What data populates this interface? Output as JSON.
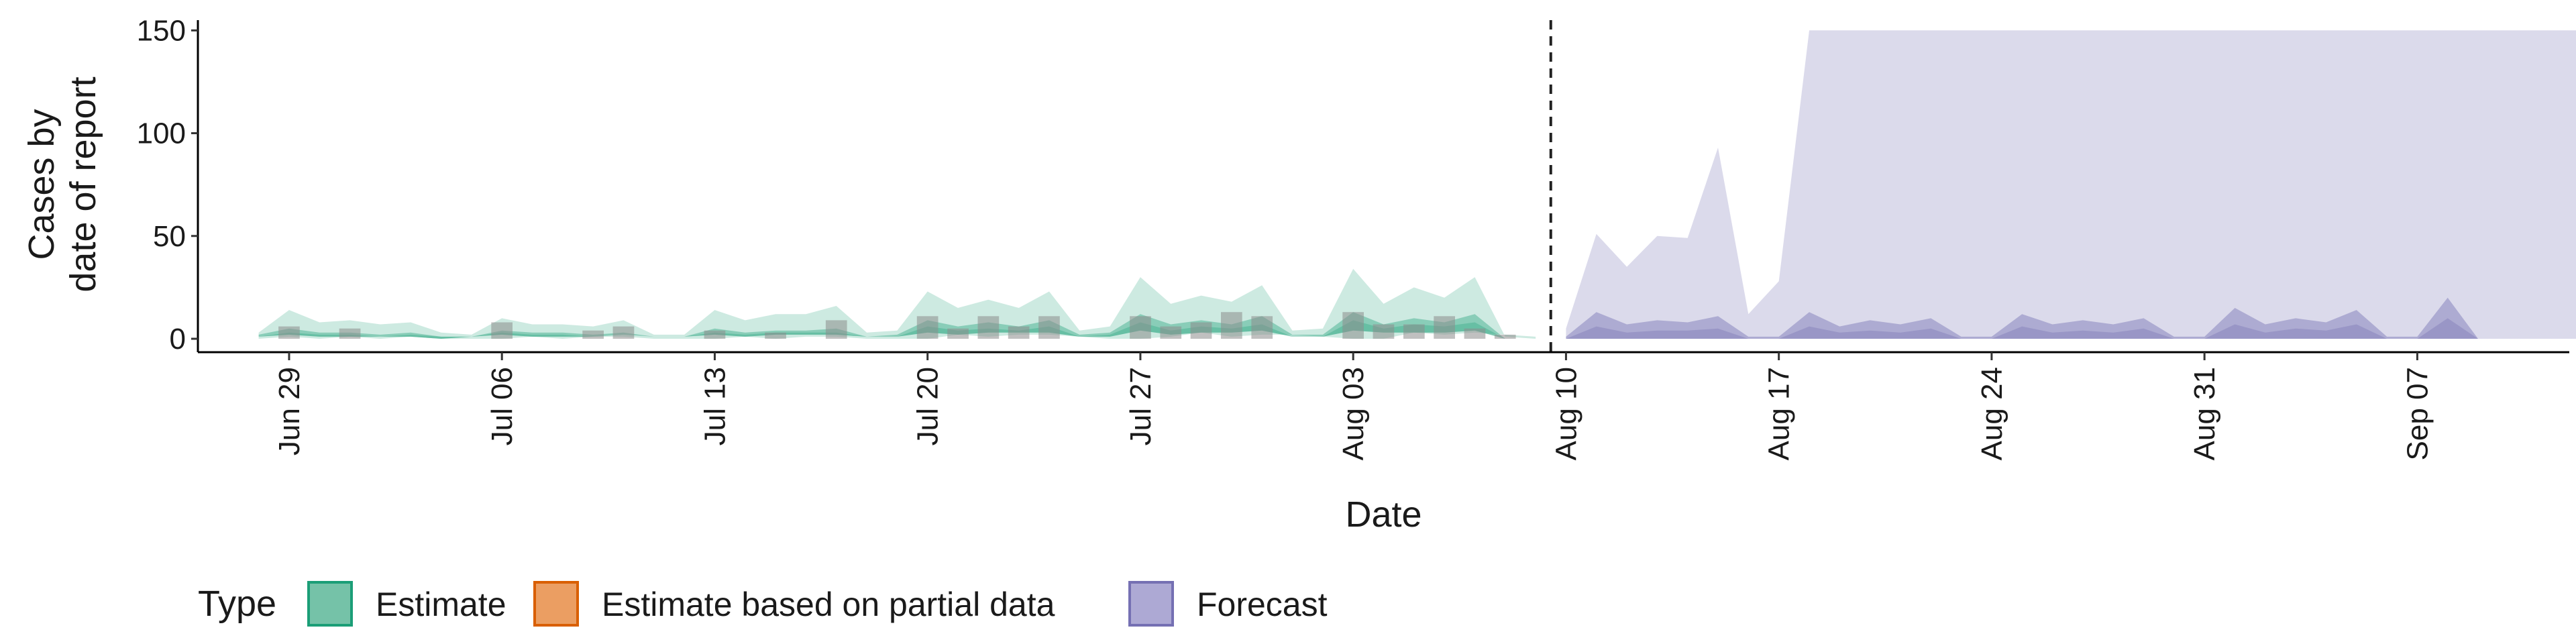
{
  "chart_data": {
    "type": "area",
    "xlabel": "Date",
    "ylabel_lines": [
      "Cases by",
      "date of report"
    ],
    "ylim": [
      0,
      155
    ],
    "y_ticks": [
      0,
      50,
      100,
      150
    ],
    "date_start": "2020-06-28",
    "x_range": [
      "2020-06-26",
      "2020-09-12"
    ],
    "x_ticks": [
      {
        "date": "2020-06-29",
        "label": "Jun 29"
      },
      {
        "date": "2020-07-06",
        "label": "Jul 06"
      },
      {
        "date": "2020-07-13",
        "label": "Jul 13"
      },
      {
        "date": "2020-07-20",
        "label": "Jul 20"
      },
      {
        "date": "2020-07-27",
        "label": "Jul 27"
      },
      {
        "date": "2020-08-03",
        "label": "Aug 03"
      },
      {
        "date": "2020-08-10",
        "label": "Aug 10"
      },
      {
        "date": "2020-08-17",
        "label": "Aug 17"
      },
      {
        "date": "2020-08-24",
        "label": "Aug 24"
      },
      {
        "date": "2020-08-31",
        "label": "Aug 31"
      },
      {
        "date": "2020-09-07",
        "label": "Sep 07"
      }
    ],
    "forecast_boundary": "2020-08-09",
    "series": [
      {
        "name": "Estimate",
        "color": "#1b9e77",
        "lower_90": [
          0,
          1,
          0,
          1,
          0,
          1,
          0,
          0,
          0,
          1,
          0,
          1,
          1,
          0,
          0,
          0,
          1,
          0,
          1,
          1,
          0,
          0,
          0,
          2,
          1,
          2,
          2,
          1,
          0,
          0,
          1,
          3,
          1,
          2,
          2,
          1,
          0,
          0,
          3,
          2,
          3,
          2,
          1
        ],
        "upper_90": [
          3,
          14,
          8,
          9,
          7,
          8,
          3,
          2,
          10,
          7,
          7,
          6,
          9,
          2,
          2,
          14,
          9,
          12,
          12,
          16,
          3,
          4,
          23,
          15,
          19,
          15,
          23,
          4,
          6,
          30,
          17,
          21,
          18,
          26,
          4,
          5,
          34,
          17,
          25,
          20,
          30,
          1,
          0
        ],
        "lower_50": [
          1,
          2,
          1,
          1,
          1,
          1,
          0,
          1,
          2,
          1,
          1,
          1,
          2,
          1,
          1,
          2,
          1,
          2,
          2,
          2,
          1,
          1,
          3,
          2,
          3,
          3,
          3,
          1,
          1,
          4,
          2,
          3,
          3,
          4,
          1,
          1,
          4,
          3,
          3,
          3,
          4,
          0,
          0
        ],
        "upper_50": [
          2,
          5,
          3,
          3,
          2,
          3,
          1,
          1,
          4,
          3,
          3,
          2,
          3,
          1,
          1,
          5,
          3,
          4,
          4,
          5,
          1,
          2,
          9,
          6,
          8,
          6,
          9,
          2,
          3,
          12,
          7,
          9,
          7,
          11,
          2,
          2,
          13,
          7,
          10,
          8,
          12,
          0,
          0
        ],
        "median": [
          1,
          3,
          2,
          2,
          1,
          2,
          1,
          1,
          3,
          2,
          2,
          1,
          2,
          1,
          1,
          3,
          2,
          3,
          3,
          3,
          1,
          1,
          6,
          4,
          5,
          4,
          6,
          1,
          2,
          8,
          4,
          6,
          5,
          7,
          1,
          1,
          9,
          5,
          7,
          6,
          8,
          0,
          0
        ]
      },
      {
        "name": "Forecast",
        "color": "#7570b3",
        "lower_90": [
          0,
          0,
          0,
          0,
          0,
          0,
          0,
          0,
          0,
          0,
          0,
          0,
          0,
          0,
          0,
          0,
          0,
          0,
          0,
          0,
          0,
          0,
          0,
          0,
          0,
          0,
          0,
          0,
          0,
          0,
          0,
          0,
          0,
          0,
          0,
          0,
          0,
          0
        ],
        "upper_90": [
          5,
          51,
          35,
          50,
          49,
          93,
          12,
          28,
          150,
          150,
          150,
          150,
          150,
          150,
          150,
          150,
          150,
          150,
          150,
          150,
          150,
          150,
          150,
          150,
          150,
          150,
          150,
          150,
          150,
          150,
          150,
          150,
          150,
          150,
          150,
          150,
          150,
          150
        ],
        "upper_50": [
          1,
          13,
          7,
          9,
          8,
          11,
          1,
          1,
          13,
          6,
          9,
          7,
          10,
          1,
          1,
          12,
          7,
          9,
          7,
          10,
          1,
          1,
          15,
          7,
          10,
          8,
          14,
          1,
          1,
          20,
          0,
          0,
          0,
          0,
          0,
          0,
          0,
          0
        ],
        "median": [
          0,
          6,
          3,
          4,
          4,
          5,
          0,
          0,
          6,
          3,
          4,
          3,
          5,
          0,
          0,
          6,
          3,
          4,
          3,
          5,
          0,
          0,
          7,
          3,
          5,
          4,
          7,
          0,
          0,
          10,
          0,
          0,
          0,
          0,
          0,
          0,
          0,
          0
        ]
      }
    ],
    "reported_cases": {
      "color": "#8c8c8c",
      "values": [
        0,
        6,
        0,
        5,
        0,
        0,
        0,
        0,
        8,
        0,
        0,
        4,
        6,
        0,
        0,
        4,
        0,
        3,
        0,
        9,
        0,
        0,
        11,
        5,
        11,
        6,
        11,
        0,
        0,
        11,
        6,
        8,
        13,
        11,
        0,
        0,
        13,
        7,
        7,
        11,
        5,
        2
      ]
    },
    "legend": {
      "title": "Type",
      "items": [
        {
          "label": "Estimate",
          "color": "#1b9e77",
          "fill": "#75c2a8"
        },
        {
          "label": "Estimate based on partial data",
          "color": "#d95f02",
          "fill": "#eb9e62"
        },
        {
          "label": "Forecast",
          "color": "#7570b3",
          "fill": "#ada9d4"
        }
      ]
    }
  }
}
